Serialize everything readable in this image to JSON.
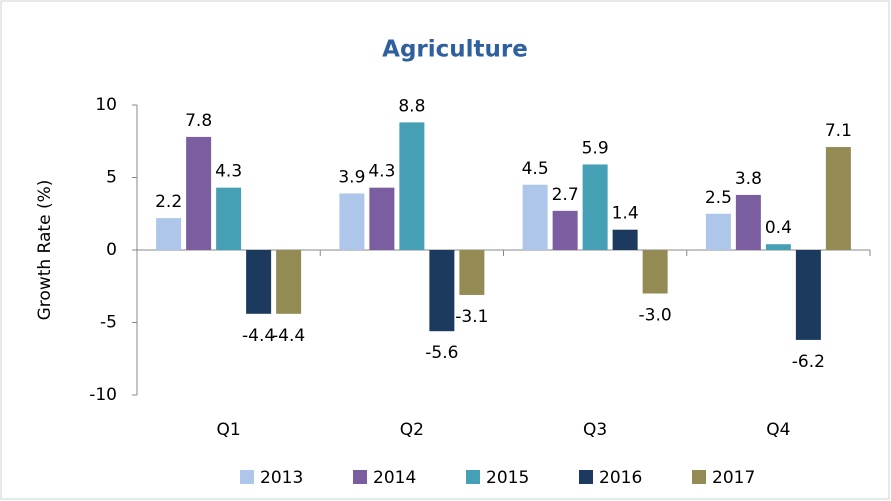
{
  "chart_data": {
    "type": "bar",
    "title": "Agriculture",
    "y_label": "Growth Rate (%)",
    "categories": [
      "Q1",
      "Q2",
      "Q3",
      "Q4"
    ],
    "series": [
      {
        "name": "2013",
        "color": "#aec6ea",
        "values": [
          2.2,
          3.9,
          4.5,
          2.5
        ],
        "value_labels": [
          "2.2",
          "3.9",
          "4.5",
          "2.5"
        ]
      },
      {
        "name": "2014",
        "color": "#7b5ea0",
        "values": [
          7.8,
          4.3,
          2.7,
          3.8
        ],
        "value_labels": [
          "7.8",
          "4.3",
          "2.7",
          "3.8"
        ]
      },
      {
        "name": "2015",
        "color": "#46a0b5",
        "values": [
          4.3,
          8.8,
          5.9,
          0.4
        ],
        "value_labels": [
          "4.3",
          "8.8",
          "5.9",
          "0.4"
        ]
      },
      {
        "name": "2016",
        "color": "#1b3a5e",
        "values": [
          -4.4,
          -5.6,
          1.4,
          -6.2
        ],
        "value_labels": [
          "-4.4",
          "-5.6",
          "1.4",
          "-6.2"
        ]
      },
      {
        "name": "2017",
        "color": "#948a54",
        "values": [
          -4.4,
          -3.1,
          -3.0,
          7.1
        ],
        "value_labels": [
          "-4.4",
          "-3.1",
          "-3.0",
          "7.1"
        ]
      }
    ],
    "ylim": [
      -10,
      10
    ],
    "yticks": [
      10,
      5,
      0,
      -5,
      -10
    ],
    "legend": "bottom"
  }
}
